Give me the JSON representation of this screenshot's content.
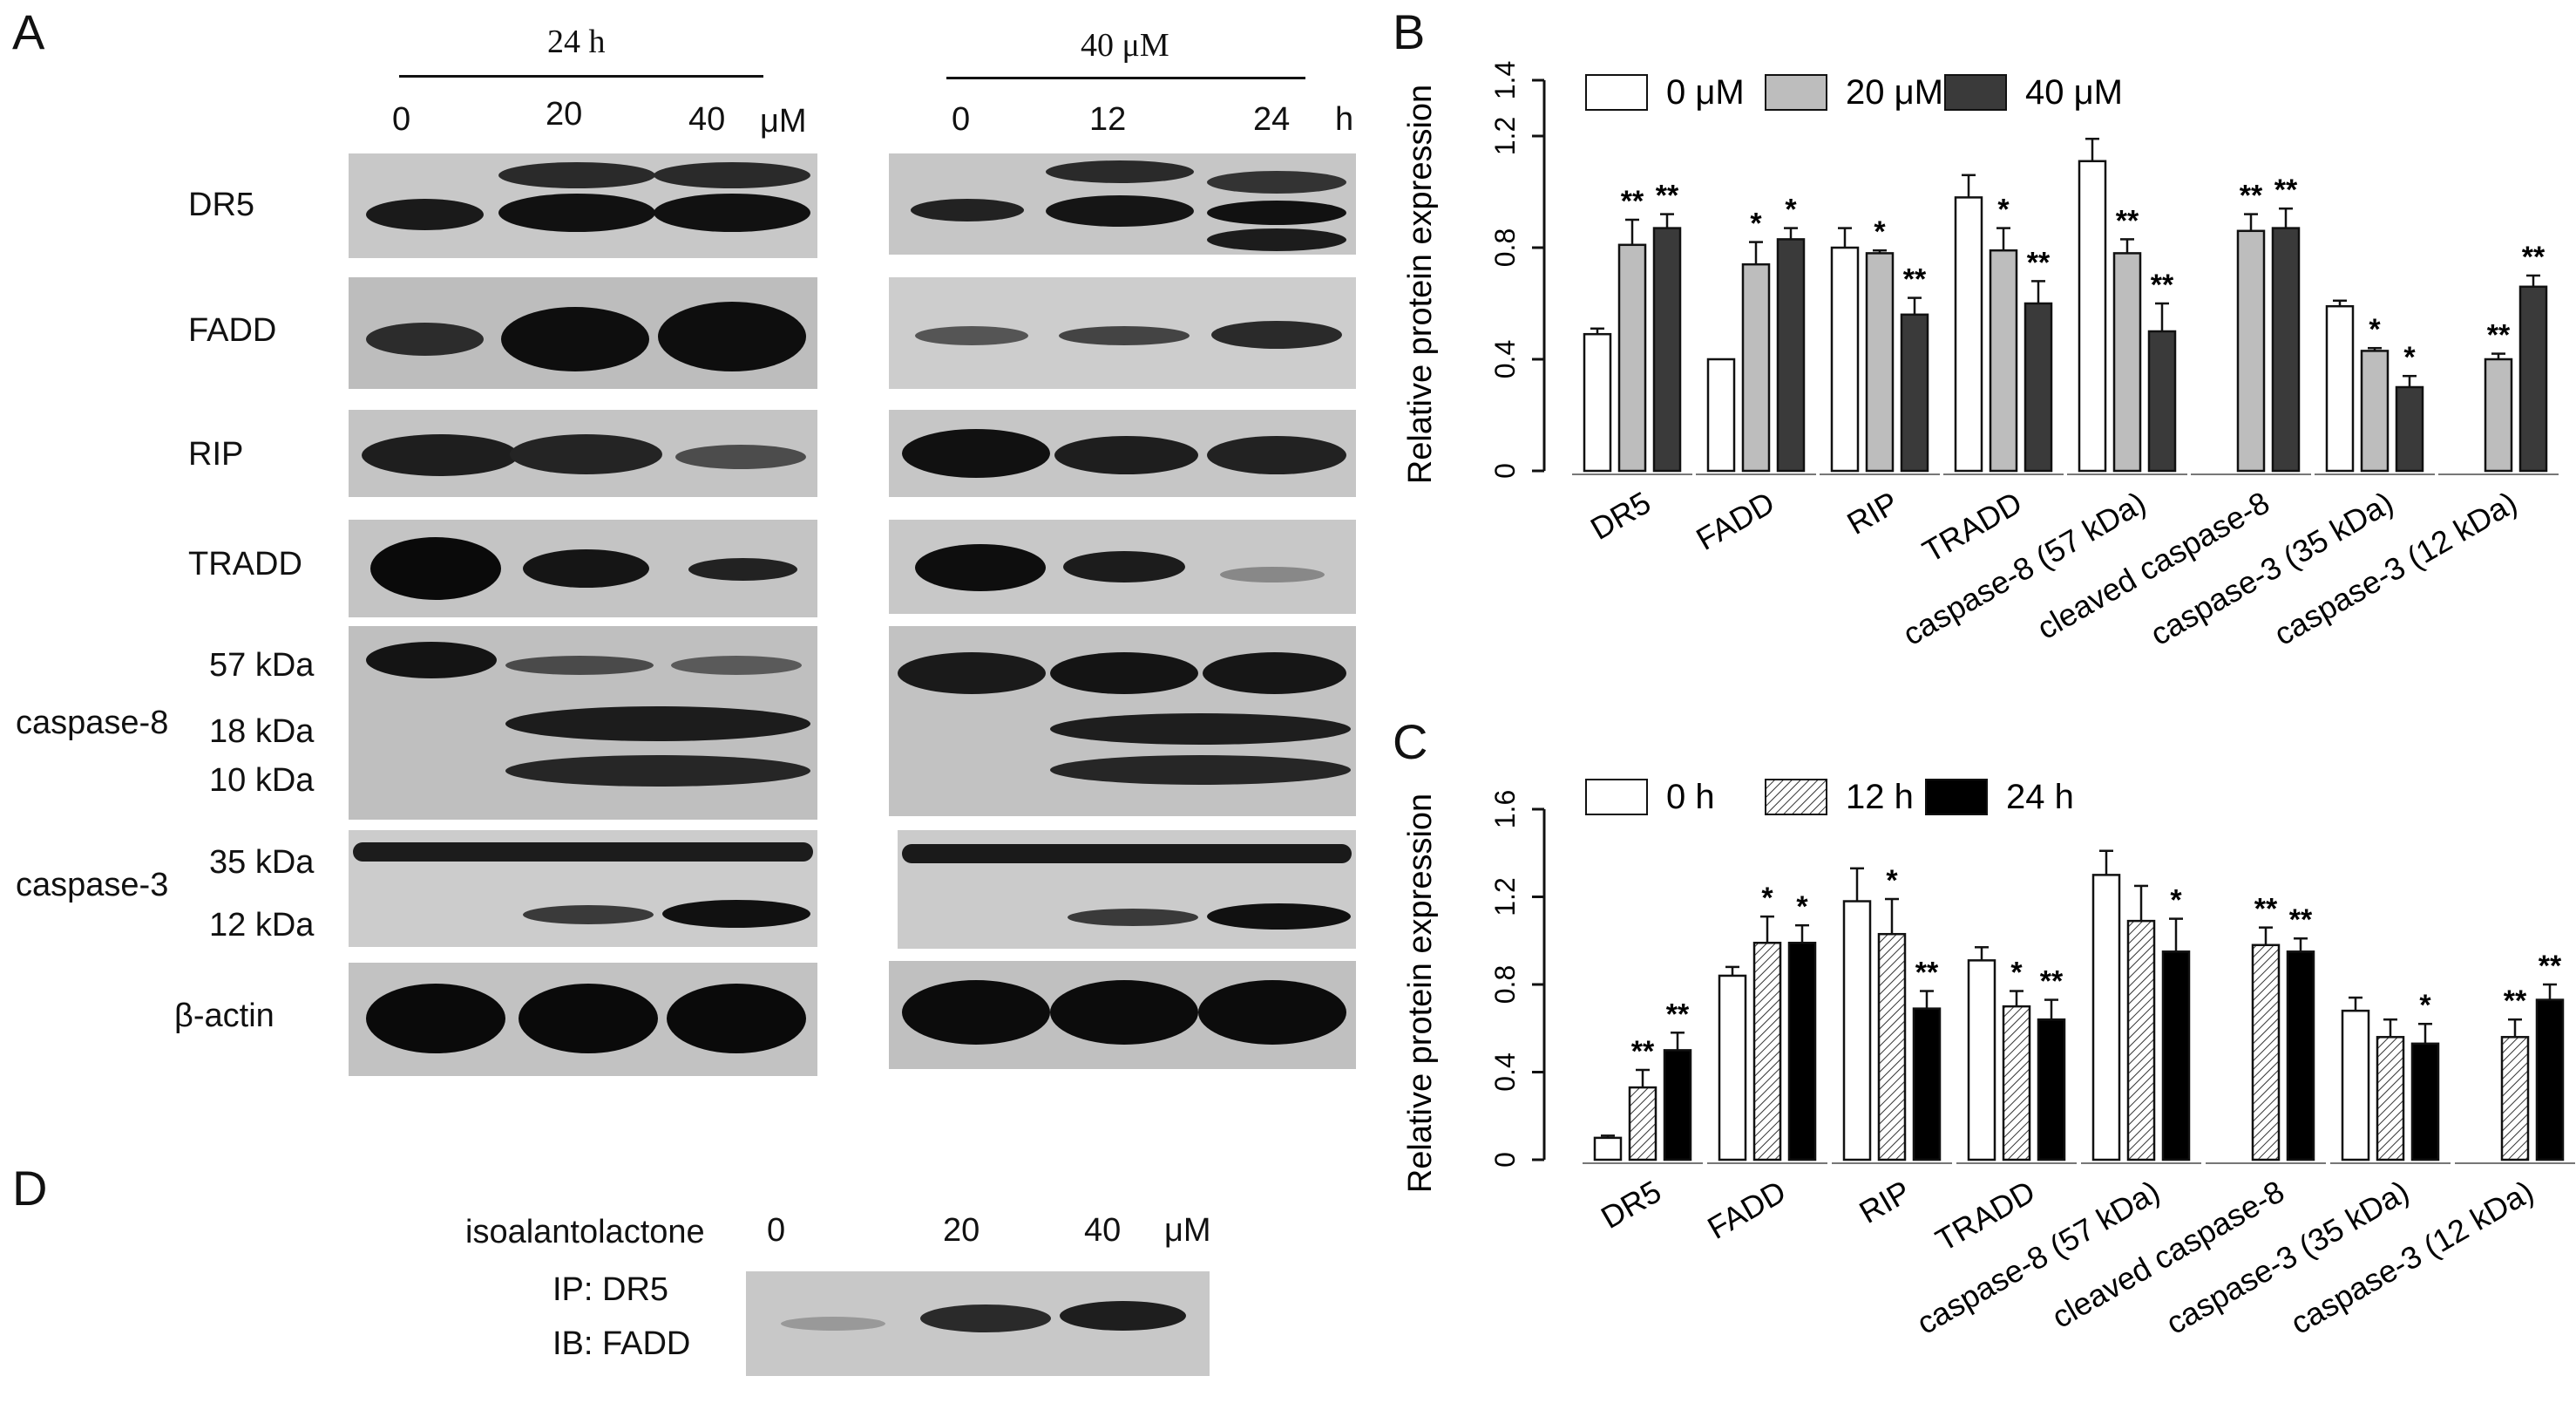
{
  "panels": {
    "A": "A",
    "B": "B",
    "C": "C",
    "D": "D"
  },
  "blots_A": {
    "left_header": "24 h",
    "left_lanes": [
      "0",
      "20",
      "40"
    ],
    "left_unit": "μM",
    "right_header": "40 μM",
    "right_lanes": [
      "0",
      "12",
      "24"
    ],
    "right_unit": "h",
    "rows": {
      "dr5": "DR5",
      "fadd": "FADD",
      "rip": "RIP",
      "tradd": "TRADD",
      "caspase8": "caspase-8",
      "c8_57": "57 kDa",
      "c8_18": "18 kDa",
      "c8_10": "10 kDa",
      "caspase3": "caspase-3",
      "c3_35": "35 kDa",
      "c3_12": "12 kDa",
      "actin": "β-actin"
    }
  },
  "panel_D": {
    "compound": "isoalantolactone",
    "lanes": [
      "0",
      "20",
      "40"
    ],
    "unit": "μM",
    "ip": "IP: DR5",
    "ib": "IB: FADD"
  },
  "chart_data": [
    {
      "type": "bar",
      "panel": "B",
      "ylabel": "Relative protein expression",
      "ylim": [
        0,
        1.4
      ],
      "yticks": [
        "0",
        "0.4",
        "0.8",
        "1.2",
        "1.4"
      ],
      "yticks_values": [
        0,
        0.4,
        0.8,
        1.2,
        1.4
      ],
      "categories": [
        "DR5",
        "FADD",
        "RIP",
        "TRADD",
        "caspase-8 (57 kDa)",
        "cleaved caspase-8",
        "caspase-3 (35 kDa)",
        "caspase-3  (12 kDa)"
      ],
      "legend_position": "top",
      "series": [
        {
          "name": "0 μM",
          "fill": "#ffffff",
          "values": [
            0.49,
            0.4,
            0.8,
            0.98,
            1.11,
            null,
            0.59,
            null
          ],
          "errors": [
            0.02,
            0,
            0.07,
            0.08,
            0.08,
            null,
            0.02,
            null
          ],
          "stars": [
            "",
            "",
            "",
            "",
            "",
            "",
            "",
            ""
          ]
        },
        {
          "name": "20 μM",
          "fill": "#bdbdbd",
          "values": [
            0.81,
            0.74,
            0.78,
            0.79,
            0.78,
            0.86,
            0.43,
            0.4
          ],
          "errors": [
            0.09,
            0.08,
            0.01,
            0.08,
            0.05,
            0.06,
            0.01,
            0.02
          ],
          "stars": [
            "**",
            "*",
            "*",
            "*",
            "**",
            "**",
            "*",
            "**"
          ]
        },
        {
          "name": "40 μM",
          "fill": "#3a3a3a",
          "values": [
            0.87,
            0.83,
            0.56,
            0.6,
            0.5,
            0.87,
            0.3,
            0.66
          ],
          "errors": [
            0.05,
            0.04,
            0.06,
            0.08,
            0.1,
            0.07,
            0.04,
            0.04
          ],
          "stars": [
            "**",
            "*",
            "**",
            "**",
            "**",
            "**",
            "*",
            "**"
          ]
        }
      ]
    },
    {
      "type": "bar",
      "panel": "C",
      "ylabel": "Relative protein expression",
      "ylim": [
        0,
        1.6
      ],
      "yticks": [
        "0",
        "0.4",
        "0.8",
        "1.2",
        "1.6"
      ],
      "yticks_values": [
        0,
        0.4,
        0.8,
        1.2,
        1.6
      ],
      "categories": [
        "DR5",
        "FADD",
        "RIP",
        "TRADD",
        "caspase-8 (57 kDa)",
        "cleaved caspase-8",
        "caspase-3 (35 kDa)",
        "caspase-3  (12 kDa)"
      ],
      "legend_position": "top",
      "series": [
        {
          "name": "0 h",
          "fill": "#ffffff",
          "values": [
            0.1,
            0.84,
            1.18,
            0.91,
            1.3,
            null,
            0.68,
            null
          ],
          "errors": [
            0.01,
            0.04,
            0.15,
            0.06,
            0.11,
            null,
            0.06,
            null
          ],
          "stars": [
            "",
            "",
            "",
            "",
            "",
            "",
            "",
            ""
          ]
        },
        {
          "name": "12 h",
          "fill": "hatch",
          "values": [
            0.33,
            0.99,
            1.03,
            0.7,
            1.09,
            0.98,
            0.56,
            0.56
          ],
          "errors": [
            0.08,
            0.12,
            0.16,
            0.07,
            0.16,
            0.08,
            0.08,
            0.08
          ],
          "stars": [
            "**",
            "*",
            "*",
            "*",
            "",
            "**",
            "",
            "**"
          ]
        },
        {
          "name": "24 h",
          "fill": "#000000",
          "values": [
            0.5,
            0.99,
            0.69,
            0.64,
            0.95,
            0.95,
            0.53,
            0.73
          ],
          "errors": [
            0.08,
            0.08,
            0.08,
            0.09,
            0.15,
            0.06,
            0.09,
            0.07
          ],
          "stars": [
            "**",
            "*",
            "**",
            "**",
            "*",
            "**",
            "*",
            "**"
          ]
        }
      ]
    }
  ]
}
